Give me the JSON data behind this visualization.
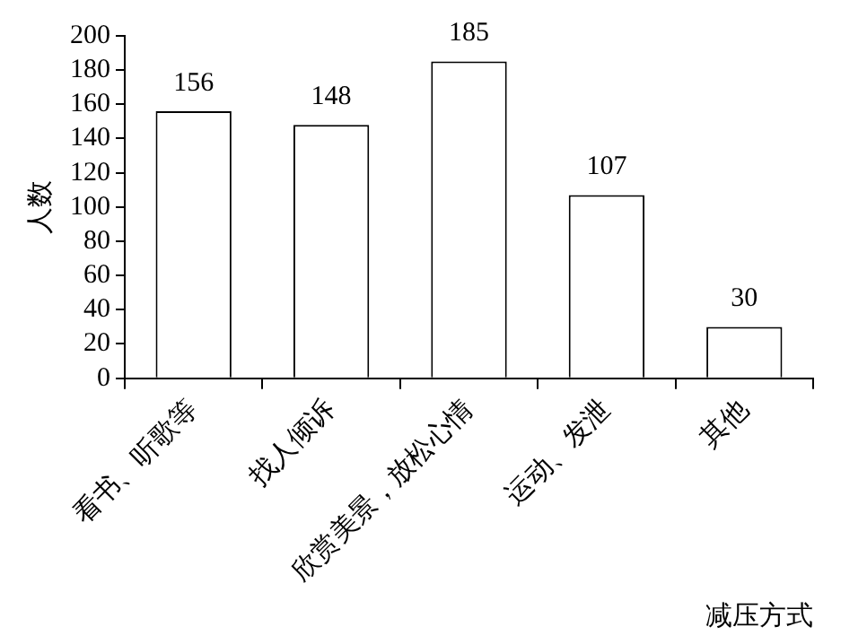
{
  "chart_data": {
    "type": "bar",
    "xlabel": "减压方式",
    "ylabel": "人数",
    "categories": [
      "看书、听歌等",
      "找人倾诉",
      "欣赏美景，放松心情",
      "运动、发泄",
      "其他"
    ],
    "values": [
      156,
      148,
      185,
      107,
      30
    ],
    "color": "#ffffff",
    "ylim": [
      0,
      200
    ],
    "yticks": [
      0,
      20,
      40,
      60,
      80,
      100,
      120,
      140,
      160,
      180,
      200
    ],
    "data_labels": true,
    "legend": false
  }
}
